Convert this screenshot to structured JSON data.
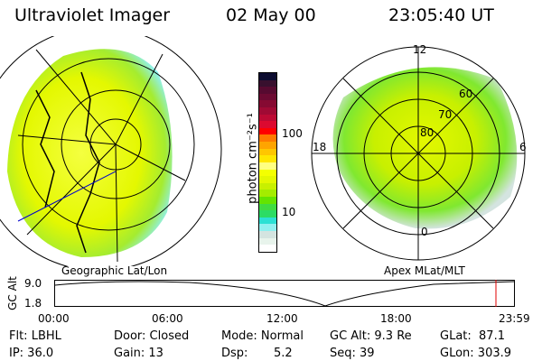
{
  "header": {
    "instrument": "Ultraviolet Imager",
    "date": "02 May 00",
    "time": "23:05:40 UT"
  },
  "colorbar": {
    "label": "photon cm⁻²s⁻¹",
    "ticks": [
      "100",
      "10"
    ],
    "colors": [
      "#0c0c30",
      "#38102e",
      "#560a30",
      "#6c0a32",
      "#860a32",
      "#a00a34",
      "#bc0a34",
      "#dc0a30",
      "#ff0000",
      "#ff7a00",
      "#ffa400",
      "#ffc600",
      "#ffe600",
      "#ffff80",
      "#f4ff00",
      "#e4f800",
      "#c8f000",
      "#a4ec00",
      "#64e400",
      "#40dc40",
      "#2cdc64",
      "#2ce0d4",
      "#90f0f0",
      "#d4e4e0",
      "#e8f4ec",
      "#ffffff"
    ]
  },
  "left_map": {
    "label": "Geographic Lat/Lon"
  },
  "right_map": {
    "label": "Apex MLat/MLT",
    "mlt_labels": [
      "12",
      "6",
      "18",
      "0"
    ],
    "lat_labels": [
      "80",
      "70",
      "60"
    ]
  },
  "timeline": {
    "ylabel": "GC Alt",
    "yticks": [
      "9.0",
      "1.8"
    ],
    "xticks": [
      "00:00",
      "06:00",
      "12:00",
      "18:00",
      "23:59"
    ],
    "cursor_color": "#e00000"
  },
  "info": {
    "flt": "Flt: LBHL",
    "ip": "IP: 36.0",
    "door": "Door: Closed",
    "gain": "Gain: 13",
    "mode": "Mode: Normal",
    "dsp_label": "Dsp:",
    "dsp_value": "5.2",
    "gcalt": "GC Alt: 9.3 Re",
    "seq": "Seq: 39",
    "glat": "GLat:  87.1",
    "glon": "GLon: 303.9"
  }
}
